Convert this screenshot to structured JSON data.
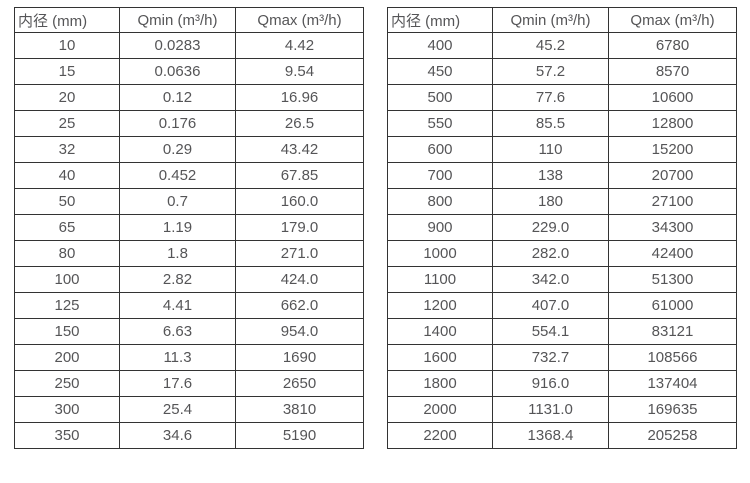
{
  "page": {
    "background_color": "#ffffff",
    "border_color": "#333333",
    "text_color": "#555557"
  },
  "chart_data": [
    {
      "type": "table",
      "title": "",
      "columns": [
        "内径 (mm)",
        "Qmin (m³/h)",
        "Qmax (m³/h)"
      ],
      "rows": [
        [
          "10",
          "0.0283",
          "4.42"
        ],
        [
          "15",
          "0.0636",
          "9.54"
        ],
        [
          "20",
          "0.12",
          "16.96"
        ],
        [
          "25",
          "0.176",
          "26.5"
        ],
        [
          "32",
          "0.29",
          "43.42"
        ],
        [
          "40",
          "0.452",
          "67.85"
        ],
        [
          "50",
          "0.7",
          "160.0"
        ],
        [
          "65",
          "1.19",
          "179.0"
        ],
        [
          "80",
          "1.8",
          "271.0"
        ],
        [
          "100",
          "2.82",
          "424.0"
        ],
        [
          "125",
          "4.41",
          "662.0"
        ],
        [
          "150",
          "6.63",
          "954.0"
        ],
        [
          "200",
          "11.3",
          "1690"
        ],
        [
          "250",
          "17.6",
          "2650"
        ],
        [
          "300",
          "25.4",
          "3810"
        ],
        [
          "350",
          "34.6",
          "5190"
        ]
      ]
    },
    {
      "type": "table",
      "title": "",
      "columns": [
        "内径 (mm)",
        "Qmin (m³/h)",
        "Qmax (m³/h)"
      ],
      "rows": [
        [
          "400",
          "45.2",
          "6780"
        ],
        [
          "450",
          "57.2",
          "8570"
        ],
        [
          "500",
          "77.6",
          "10600"
        ],
        [
          "550",
          "85.5",
          "12800"
        ],
        [
          "600",
          "110",
          "15200"
        ],
        [
          "700",
          "138",
          "20700"
        ],
        [
          "800",
          "180",
          "27100"
        ],
        [
          "900",
          "229.0",
          "34300"
        ],
        [
          "1000",
          "282.0",
          "42400"
        ],
        [
          "1100",
          "342.0",
          "51300"
        ],
        [
          "1200",
          "407.0",
          "61000"
        ],
        [
          "1400",
          "554.1",
          "83121"
        ],
        [
          "1600",
          "732.7",
          "108566"
        ],
        [
          "1800",
          "916.0",
          "137404"
        ],
        [
          "2000",
          "1131.0",
          "169635"
        ],
        [
          "2200",
          "1368.4",
          "205258"
        ]
      ]
    }
  ]
}
